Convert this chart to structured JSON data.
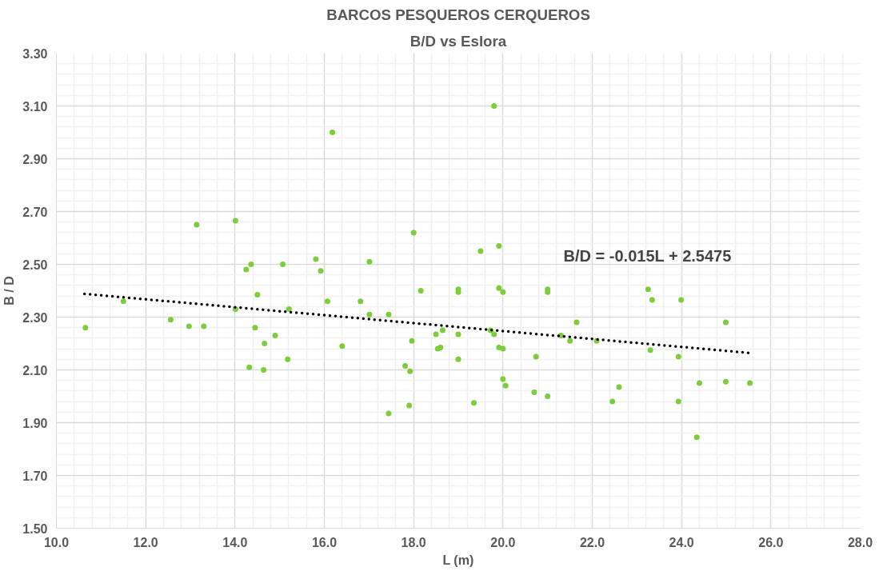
{
  "chart_data": {
    "type": "scatter",
    "title": "BARCOS PESQUEROS CERQUEROS",
    "subtitle": "B/D vs Eslora",
    "xlabel": "L (m)",
    "ylabel": "B / D",
    "xlim": [
      10,
      28
    ],
    "ylim": [
      1.5,
      3.3
    ],
    "xticks": [
      {
        "value": 10,
        "label": "10.0"
      },
      {
        "value": 12,
        "label": "12.0"
      },
      {
        "value": 14,
        "label": "14.0"
      },
      {
        "value": 16,
        "label": "16.0"
      },
      {
        "value": 18,
        "label": "18.0"
      },
      {
        "value": 20,
        "label": "20.0"
      },
      {
        "value": 22,
        "label": "22.0"
      },
      {
        "value": 24,
        "label": "24.0"
      },
      {
        "value": 26,
        "label": "26.0"
      },
      {
        "value": 28,
        "label": "28.0"
      }
    ],
    "yticks": [
      {
        "value": 1.5,
        "label": "1.50"
      },
      {
        "value": 1.7,
        "label": "1.70"
      },
      {
        "value": 1.9,
        "label": "1.90"
      },
      {
        "value": 2.1,
        "label": "2.10"
      },
      {
        "value": 2.3,
        "label": "2.30"
      },
      {
        "value": 2.5,
        "label": "2.50"
      },
      {
        "value": 2.7,
        "label": "2.70"
      },
      {
        "value": 2.9,
        "label": "2.90"
      },
      {
        "value": 3.1,
        "label": "3.10"
      },
      {
        "value": 3.3,
        "label": "3.30"
      }
    ],
    "grid": true,
    "annotations": [
      "B/D = -0.015L + 2.5475"
    ],
    "series": [
      {
        "color": "#7ccc3c",
        "marker": "circle",
        "x": [
          10.65,
          11.5,
          12.56,
          12.97,
          13.3,
          13.14,
          14.01,
          14.01,
          14.25,
          14.36,
          14.32,
          14.5,
          14.45,
          14.66,
          14.64,
          14.9,
          15.07,
          15.18,
          15.21,
          15.81,
          15.92,
          16.07,
          16.18,
          19.8,
          16.4,
          17.01,
          16.81,
          17.01,
          17.44,
          17.44,
          17.81,
          17.96,
          17.92,
          17.9,
          18.0,
          18.16,
          18.5,
          18.65,
          18.54,
          18.6,
          19.0,
          19.0,
          19.0,
          19.0,
          19.35,
          19.5,
          19.91,
          19.91,
          20.0,
          19.72,
          19.8,
          19.91,
          20.0,
          20.0,
          20.06,
          20.74,
          20.7,
          21.0,
          21.0,
          21.0,
          21.65,
          21.3,
          21.5,
          22.1,
          23.25,
          23.34,
          23.99,
          24.99,
          23.3,
          23.93,
          22.6,
          22.45,
          23.93,
          24.4,
          24.99,
          25.53,
          24.34
        ],
        "values": [
          2.26,
          2.36,
          2.29,
          2.265,
          2.265,
          2.65,
          2.665,
          2.33,
          2.48,
          2.5,
          2.11,
          2.385,
          2.26,
          2.2,
          2.1,
          2.23,
          2.5,
          2.14,
          2.33,
          2.52,
          2.475,
          2.36,
          3.0,
          3.1,
          2.19,
          2.51,
          2.36,
          2.31,
          2.31,
          1.935,
          2.115,
          2.21,
          2.095,
          1.965,
          2.62,
          2.4,
          2.235,
          2.25,
          2.18,
          2.185,
          2.405,
          2.395,
          2.235,
          2.14,
          1.975,
          2.55,
          2.57,
          2.41,
          2.395,
          2.25,
          2.235,
          2.185,
          2.18,
          2.065,
          2.04,
          2.15,
          2.015,
          2.0,
          2.405,
          2.395,
          2.28,
          2.23,
          2.21,
          2.21,
          2.405,
          2.365,
          2.365,
          2.28,
          2.175,
          2.15,
          2.035,
          1.98,
          1.98,
          2.05,
          2.055,
          2.05,
          1.845
        ]
      },
      {
        "type": "line",
        "color": "#000000",
        "line_style": "dotted",
        "marker": "none",
        "x": [
          10.63,
          25.53
        ],
        "values": [
          2.388,
          2.164
        ]
      }
    ]
  }
}
